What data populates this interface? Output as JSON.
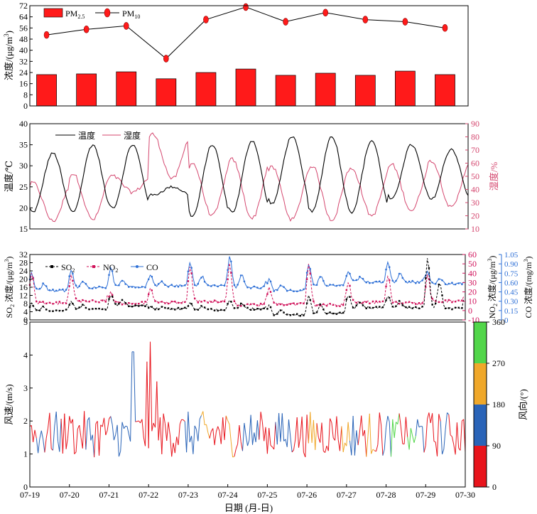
{
  "colors": {
    "pm25": "#ff1a1a",
    "pm10_line": "#000000",
    "temperature": "#000000",
    "humidity": "#d4466e",
    "so2": "#000000",
    "no2": "#d0125a",
    "co": "#2d6fd6",
    "wd_0_90": "#e8141c",
    "wd_90_180": "#2a64b8",
    "wd_180_270": "#f0a82a",
    "wd_270_360": "#52d64a"
  },
  "chart_data": [
    {
      "id": "pm",
      "type": "bar",
      "categories": [
        "07-19",
        "07-20",
        "07-21",
        "07-22",
        "07-23",
        "07-24",
        "07-25",
        "07-26",
        "07-27",
        "07-28",
        "07-29"
      ],
      "series": [
        {
          "name": "PM2.5",
          "name_main": "PM",
          "name_sub": "2.5",
          "style": "bar",
          "values": [
            22.5,
            23,
            24.5,
            19.5,
            24,
            26.5,
            22,
            23.5,
            22,
            25,
            22.5
          ]
        },
        {
          "name": "PM10",
          "name_main": "PM",
          "name_sub": "10",
          "style": "line-marker",
          "values": [
            51,
            55,
            57.5,
            34,
            62,
            71,
            60.5,
            67,
            62,
            60.5,
            56
          ]
        }
      ],
      "ylabel": "浓度/(μg/m³)",
      "ylabel_parts": [
        "浓度/(μg/m",
        "3",
        ")"
      ],
      "ylim": [
        0,
        72
      ],
      "yticks": [
        "0",
        "8",
        "16",
        "24",
        "32",
        "40",
        "48",
        "56",
        "64",
        "72"
      ],
      "legend": "top-left"
    },
    {
      "id": "temp_hum",
      "type": "line",
      "x_days": 11,
      "series": [
        {
          "name": "温度",
          "axis": "left",
          "hourly_pattern": {
            "min": [
              19,
              19,
              20,
              23,
              18,
              19,
              21,
              19,
              19,
              22,
              22
            ],
            "max": [
              33,
              35,
              35,
              25,
              35,
              36,
              37,
              37,
              36,
              35,
              34
            ]
          }
        },
        {
          "name": "湿度",
          "axis": "right",
          "hourly_pattern": {
            "min": [
              16,
              17,
              38,
              48,
              20,
              18,
              17,
              17,
              20,
              24,
              26
            ],
            "max": [
              45,
              52,
              50,
              82,
              60,
              63,
              57,
              58,
              56,
              59,
              62
            ]
          }
        }
      ],
      "ylabel_left": "温度/℃",
      "ylim_left": [
        15,
        40
      ],
      "yticks_left": [
        "15",
        "20",
        "25",
        "30",
        "35",
        "40"
      ],
      "ylabel_right": "湿度/%",
      "ylim_right": [
        10,
        90
      ],
      "yticks_right": [
        "10",
        "20",
        "30",
        "40",
        "50",
        "60",
        "70",
        "80",
        "90"
      ],
      "legend": "top-left"
    },
    {
      "id": "gases",
      "type": "line",
      "x_days": 11,
      "series": [
        {
          "name": "SO2",
          "name_main": "SO",
          "name_sub": "2",
          "axis": "left",
          "style": "dashed-marker",
          "daily_base": [
            4.5,
            5.2,
            7,
            5.5,
            5,
            5.4,
            2.5,
            3.2,
            6,
            6,
            5.5
          ],
          "daily_peak": [
            8,
            9,
            12,
            7,
            8,
            10,
            7,
            12,
            12,
            12,
            31
          ]
        },
        {
          "name": "NO2",
          "name_main": "NO",
          "name_sub": "2",
          "axis": "right-1",
          "style": "dashed-marker",
          "daily_base": [
            8,
            10,
            8,
            9,
            10,
            6,
            7,
            6,
            9,
            8,
            10
          ],
          "daily_peak": [
            40,
            38,
            20,
            24,
            48,
            50,
            25,
            50,
            30,
            38,
            38
          ]
        },
        {
          "name": "CO",
          "axis": "right-2",
          "style": "line-marker",
          "daily_base": [
            0.47,
            0.52,
            0.53,
            0.55,
            0.55,
            0.52,
            0.47,
            0.55,
            0.61,
            0.61,
            0.58
          ],
          "daily_peak": [
            0.75,
            0.79,
            0.84,
            0.71,
            0.92,
            1.02,
            0.67,
            0.9,
            0.78,
            0.93,
            0.79
          ]
        }
      ],
      "ylabel_left": "SO₂ 浓度/(μg/m³)",
      "ylabel_left_parts": [
        "SO",
        "2",
        " 浓度/(μg/m",
        "3",
        ")"
      ],
      "ylim_left": [
        0,
        32
      ],
      "yticks_left": [
        "0",
        "4",
        "8",
        "12",
        "16",
        "20",
        "24",
        "28",
        "32"
      ],
      "ylabel_right1": "NO₂ 浓度/(μg/m³)",
      "ylabel_right1_parts": [
        "NO",
        "2",
        " 浓度/(μg/m",
        "3",
        ")"
      ],
      "ylim_right1": [
        -10,
        60
      ],
      "yticks_right1": [
        "-10",
        "0",
        "10",
        "20",
        "30",
        "40",
        "50",
        "60"
      ],
      "ylabel_right2": "CO 浓度/(mg/m³)",
      "ylabel_right2_parts": [
        "CO 浓度/(mg/m",
        "3",
        ")"
      ],
      "ylim_right2": [
        0,
        1.05
      ],
      "yticks_right2": [
        "0",
        "0.15",
        "0.30",
        "0.45",
        "0.60",
        "0.75",
        "0.90",
        "1.05"
      ],
      "legend": "top-left"
    },
    {
      "id": "wind",
      "type": "line",
      "x_days": 11,
      "series": [
        {
          "name": "风速",
          "axis": "left",
          "peaks": [
            {
              "day": 2.6,
              "value": 4.1
            },
            {
              "day": 2.95,
              "value": 3.8
            },
            {
              "day": 3.05,
              "value": 4.4
            },
            {
              "day": 3.2,
              "value": 3.2
            }
          ]
        }
      ],
      "ylabel": "风速/(m/s)",
      "ylim": [
        0,
        5
      ],
      "yticks": [
        "0",
        "1",
        "2",
        "3",
        "4",
        "5"
      ],
      "colorbar_label": "风向/(°)",
      "colorbar_ticks": [
        "0",
        "90",
        "180",
        "270",
        "360"
      ],
      "xlabel": "日期 (月-日)",
      "xticks": [
        "07-19",
        "07-20",
        "07-21",
        "07-22",
        "07-23",
        "07-24",
        "07-25",
        "07-26",
        "07-27",
        "07-28",
        "07-29",
        "07-30"
      ]
    }
  ]
}
